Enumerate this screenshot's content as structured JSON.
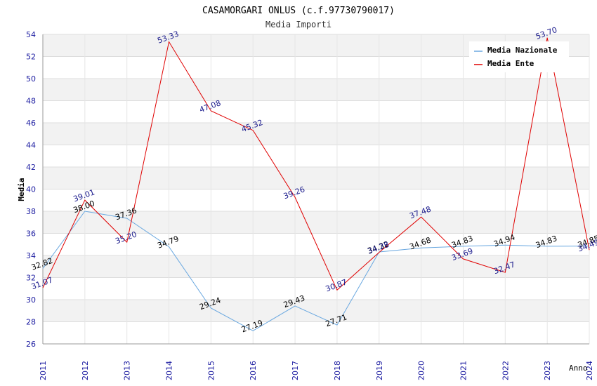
{
  "chart_data": {
    "type": "line",
    "title": "CASAMORGARI ONLUS (c.f.97730790017)",
    "subtitle": "Media Importi",
    "xlabel": "Anno",
    "ylabel": "Media",
    "ylim": [
      26,
      54
    ],
    "yticks": [
      26,
      28,
      30,
      32,
      34,
      36,
      38,
      40,
      42,
      44,
      46,
      48,
      50,
      52,
      54
    ],
    "x": [
      "2011",
      "2012",
      "2013",
      "2014",
      "2015",
      "2016",
      "2017",
      "2018",
      "2019",
      "2020",
      "2021",
      "2022",
      "2023",
      "2024"
    ],
    "grid": true,
    "legend_position": "top-right",
    "series": [
      {
        "name": "Media Nazionale",
        "color": "#6aa8e0",
        "label_color": "#000000",
        "values": [
          32.82,
          38.0,
          37.36,
          34.79,
          29.24,
          27.19,
          29.43,
          27.71,
          34.32,
          34.68,
          34.83,
          34.94,
          34.83,
          34.85
        ],
        "labels": [
          "32.82",
          "38.00",
          "37.36",
          "34.79",
          "29.24",
          "27.19",
          "29.43",
          "27.71",
          "34.32",
          "34.68",
          "34.83",
          "34.94",
          "34.83",
          "34.85"
        ]
      },
      {
        "name": "Media Ente",
        "color": "#e00000",
        "label_color": "#1a1a8c",
        "values": [
          31.07,
          39.01,
          35.2,
          53.33,
          47.08,
          45.32,
          39.26,
          30.87,
          34.28,
          37.48,
          33.69,
          32.47,
          53.7,
          34.49
        ],
        "labels": [
          "31.07",
          "39.01",
          "35.20",
          "53.33",
          "47.08",
          "45.32",
          "39.26",
          "30.87",
          "34.28",
          "37.48",
          "33.69",
          "32.47",
          "53.70",
          "34.49"
        ]
      }
    ]
  }
}
